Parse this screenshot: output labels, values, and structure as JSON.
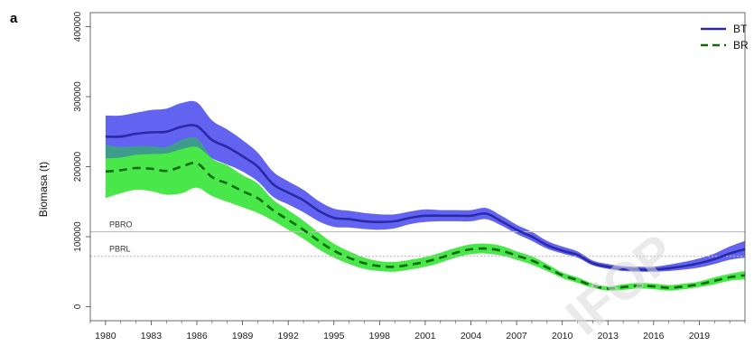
{
  "panel_label": "a",
  "watermark": "IFOP",
  "colors": {
    "bt_line": "#2a2aa8",
    "bt_band": "#5b5bf0",
    "br_line": "#0d6a0d",
    "br_band": "#3fe63f",
    "overlap_band": "#3d9c8c",
    "ref_line": "#bdbdbd"
  },
  "chart_data": {
    "type": "line",
    "title": "",
    "xlabel": "",
    "ylabel": "Biomasa (t)",
    "xlim": [
      1979,
      2022
    ],
    "ylim": [
      -20000,
      420000
    ],
    "x_ticks": [
      1980,
      1983,
      1986,
      1989,
      1992,
      1995,
      1998,
      2001,
      2004,
      2007,
      2010,
      2013,
      2016,
      2019
    ],
    "y_ticks": [
      0,
      100000,
      200000,
      300000,
      400000
    ],
    "grid": false,
    "legend_position": "top-right",
    "x": [
      1980,
      1981,
      1982,
      1983,
      1984,
      1985,
      1986,
      1987,
      1988,
      1989,
      1990,
      1991,
      1992,
      1993,
      1994,
      1995,
      1996,
      1997,
      1998,
      1999,
      2000,
      2001,
      2002,
      2003,
      2004,
      2005,
      2006,
      2007,
      2008,
      2009,
      2010,
      2011,
      2012,
      2013,
      2014,
      2015,
      2016,
      2017,
      2018,
      2019,
      2020,
      2021,
      2022
    ],
    "series": [
      {
        "name": "BT",
        "style": "solid",
        "values": [
          243000,
          243000,
          247000,
          249000,
          250000,
          257000,
          258000,
          238000,
          228000,
          215000,
          200000,
          175000,
          163000,
          152000,
          137000,
          127000,
          125000,
          122000,
          121000,
          122000,
          127000,
          130000,
          130000,
          130000,
          130000,
          133000,
          122000,
          110000,
          100000,
          88000,
          80000,
          74000,
          62000,
          57000,
          54000,
          53000,
          53000,
          55000,
          58000,
          62000,
          68000,
          76000,
          82000
        ],
        "lower": [
          212000,
          213000,
          217000,
          218000,
          219000,
          225000,
          228000,
          212000,
          203000,
          193000,
          179000,
          157000,
          146000,
          135000,
          122000,
          114000,
          113000,
          111000,
          110000,
          112000,
          118000,
          121000,
          122000,
          122000,
          122000,
          125000,
          116000,
          104000,
          94000,
          83000,
          76000,
          70000,
          59000,
          54000,
          51000,
          50000,
          50000,
          51000,
          53000,
          56000,
          61000,
          67000,
          70000
        ],
        "upper": [
          273000,
          273000,
          277000,
          281000,
          283000,
          291000,
          292000,
          266000,
          253000,
          238000,
          220000,
          193000,
          179000,
          167000,
          151000,
          140000,
          137000,
          134000,
          132000,
          132000,
          136000,
          139000,
          138000,
          138000,
          138000,
          141000,
          130000,
          117000,
          107000,
          94000,
          86000,
          79000,
          66000,
          61000,
          58000,
          57000,
          57000,
          60000,
          64000,
          69000,
          76000,
          86000,
          94000
        ]
      },
      {
        "name": "BR",
        "style": "dashed",
        "values": [
          193000,
          195000,
          198000,
          197000,
          194000,
          200000,
          205000,
          185000,
          176000,
          165000,
          155000,
          138000,
          124000,
          110000,
          94000,
          80000,
          70000,
          62000,
          58000,
          57000,
          60000,
          64000,
          70000,
          77000,
          82000,
          83000,
          80000,
          73000,
          66000,
          56000,
          45000,
          38000,
          30000,
          26000,
          28000,
          30000,
          29000,
          27000,
          29000,
          32000,
          37000,
          42000,
          45000
        ],
        "lower": [
          155000,
          162000,
          167000,
          165000,
          160000,
          162000,
          170000,
          158000,
          150000,
          142000,
          134000,
          123000,
          110000,
          97000,
          82000,
          70000,
          61000,
          54000,
          51000,
          50000,
          53000,
          57000,
          63000,
          70000,
          75000,
          76000,
          73000,
          67000,
          60000,
          51000,
          41000,
          34000,
          27000,
          23000,
          24000,
          26000,
          25000,
          23000,
          25000,
          28000,
          32000,
          37000,
          39000
        ],
        "upper": [
          231000,
          228000,
          229000,
          229000,
          228000,
          238000,
          240000,
          212000,
          202000,
          188000,
          176000,
          153000,
          138000,
          123000,
          106000,
          90000,
          79000,
          70000,
          65000,
          64000,
          67000,
          71000,
          77000,
          84000,
          89000,
          90000,
          87000,
          79000,
          72000,
          61000,
          49000,
          42000,
          33000,
          29000,
          32000,
          34000,
          33000,
          31000,
          33000,
          36000,
          42000,
          47000,
          51000
        ]
      }
    ],
    "reference_lines": [
      {
        "label": "PBRO",
        "value": 107000,
        "style": "solid"
      },
      {
        "label": "PBRL",
        "value": 72000,
        "style": "dotted"
      }
    ]
  }
}
